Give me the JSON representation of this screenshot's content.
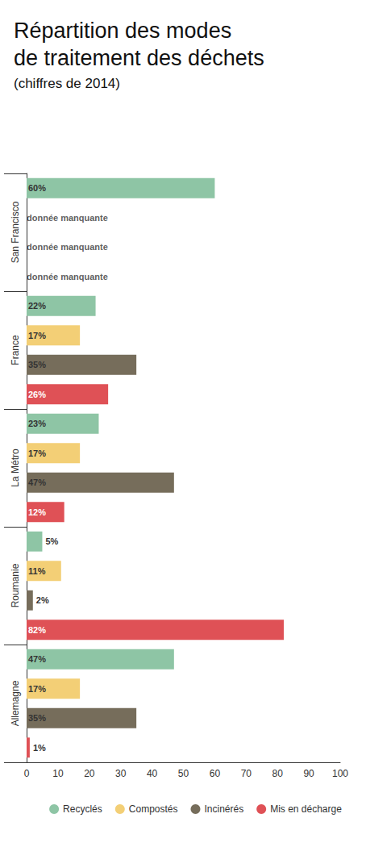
{
  "chart_data": {
    "type": "bar",
    "orientation": "horizontal",
    "title": "Répartition des modes\nde traitement des déchets",
    "subtitle": "(chiffres de 2014)",
    "categories": [
      "San Francisco",
      "France",
      "La Métro",
      "Roumanie",
      "Allemagne"
    ],
    "series": [
      {
        "name": "Recyclés",
        "color": "#8ec5a5",
        "values": [
          60,
          22,
          23,
          5,
          47
        ],
        "value_labels": [
          "60%",
          "22%",
          "23%",
          "5%",
          "47%"
        ]
      },
      {
        "name": "Compostés",
        "color": "#f3cf76",
        "values": [
          null,
          17,
          17,
          11,
          17
        ],
        "value_labels": [
          "donnée manquante",
          "17%",
          "17%",
          "11%",
          "17%"
        ]
      },
      {
        "name": "Incinérés",
        "color": "#766d5b",
        "values": [
          null,
          35,
          47,
          2,
          35
        ],
        "value_labels": [
          "donnée manquante",
          "35%",
          "47%",
          "2%",
          "35%"
        ]
      },
      {
        "name": "Mis en décharge",
        "color": "#df5156",
        "values": [
          null,
          26,
          12,
          82,
          1
        ],
        "value_labels": [
          "donnée manquante",
          "26%",
          "12%",
          "82%",
          "1%"
        ]
      }
    ],
    "xlim": [
      0,
      100
    ],
    "xticks": [
      0,
      10,
      20,
      30,
      40,
      50,
      60,
      70,
      80,
      90,
      100
    ],
    "grid": false,
    "legend": "bottom",
    "data_labels": true
  }
}
